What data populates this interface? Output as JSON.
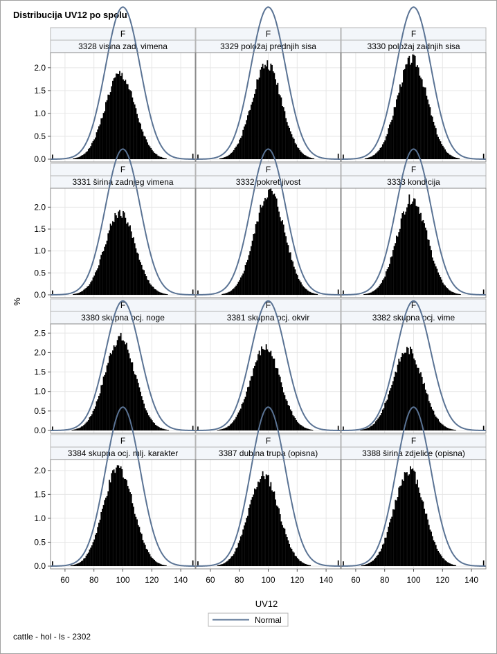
{
  "page": {
    "title": "Distribucija UV12 po spolu",
    "footer": "cattle - hol - ls - 2302"
  },
  "chart_data": {
    "type": "histogram-panel",
    "title": "Distribucija UV12 po spolu",
    "xlabel": "UV12",
    "ylabel": "%",
    "group_label": "F",
    "xlim": [
      50,
      150
    ],
    "xticks": [
      60,
      80,
      100,
      120,
      140
    ],
    "normal_mean": 100,
    "normal_sd": 12,
    "legend": [
      {
        "name": "Normal",
        "color": "#5a7394"
      }
    ],
    "bar_color": "#000000",
    "rows": [
      {
        "ylim": [
          0,
          2.3
        ],
        "yticks": [
          0.0,
          0.5,
          1.0,
          1.5,
          2.0
        ]
      },
      {
        "ylim": [
          0,
          2.4
        ],
        "yticks": [
          0.0,
          0.5,
          1.0,
          1.5,
          2.0
        ]
      },
      {
        "ylim": [
          0,
          2.7
        ],
        "yticks": [
          0.0,
          0.5,
          1.0,
          1.5,
          2.0,
          2.5
        ]
      },
      {
        "ylim": [
          0,
          2.2
        ],
        "yticks": [
          0.0,
          0.5,
          1.0,
          1.5,
          2.0
        ]
      }
    ],
    "panels": [
      {
        "sex": "F",
        "label": "3328 visina zad. vimena",
        "peak_pct": 1.85,
        "peak_x": 98
      },
      {
        "sex": "F",
        "label": "3329 položaj prednjih sisa",
        "peak_pct": 2.08,
        "peak_x": 99
      },
      {
        "sex": "F",
        "label": "3330 položaj zadnjih sisa",
        "peak_pct": 2.18,
        "peak_x": 99
      },
      {
        "sex": "F",
        "label": "3331 širina zadnjeg vimena",
        "peak_pct": 1.88,
        "peak_x": 98
      },
      {
        "sex": "F",
        "label": "3332 pokretljivost",
        "peak_pct": 2.35,
        "peak_x": 101
      },
      {
        "sex": "F",
        "label": "3333 kondicija",
        "peak_pct": 2.2,
        "peak_x": 99
      },
      {
        "sex": "F",
        "label": "3380 skupna ocj. noge",
        "peak_pct": 2.38,
        "peak_x": 98
      },
      {
        "sex": "F",
        "label": "3381 skupna ocj. okvir",
        "peak_pct": 2.12,
        "peak_x": 98
      },
      {
        "sex": "F",
        "label": "3382 skupna ocj. vime",
        "peak_pct": 2.08,
        "peak_x": 96
      },
      {
        "sex": "F",
        "label": "3384 skupna ocj. mlj. karakter",
        "peak_pct": 2.05,
        "peak_x": 97
      },
      {
        "sex": "F",
        "label": "3387 dubina trupa (opisna)",
        "peak_pct": 1.9,
        "peak_x": 97
      },
      {
        "sex": "F",
        "label": "3388 širina zdjelice (opisna)",
        "peak_pct": 2.02,
        "peak_x": 97
      }
    ]
  }
}
